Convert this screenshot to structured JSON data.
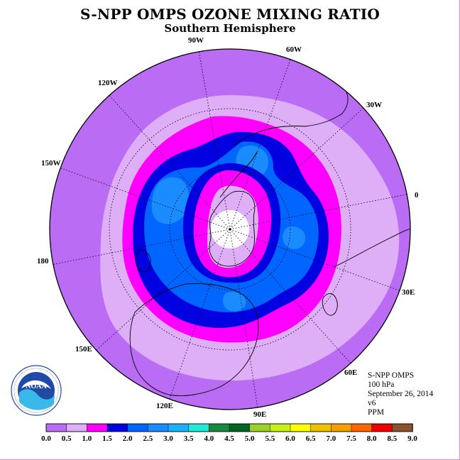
{
  "title": "S-NPP OMPS OZONE MIXING RATIO",
  "subtitle": "Southern Hemisphere",
  "longitude_labels": [
    "90W",
    "60W",
    "30W",
    "0",
    "30E",
    "60E",
    "90E",
    "120E",
    "150E",
    "180",
    "150W",
    "120W"
  ],
  "info": {
    "instrument": "S-NPP OMPS",
    "level": "100 hPa",
    "date": "September 26, 2014",
    "version": "v6",
    "units": "PPM"
  },
  "logo": {
    "text": "NOAA",
    "ring_text": "NATIONAL OCEANIC AND ATMOSPHERIC ADMINISTRATION · U.S. DEPARTMENT OF COMMERCE"
  },
  "colorbar": {
    "ticks": [
      "0.0",
      "0.5",
      "1.0",
      "1.5",
      "2.0",
      "2.5",
      "3.0",
      "3.5",
      "4.0",
      "4.5",
      "5.0",
      "5.5",
      "6.0",
      "6.5",
      "7.0",
      "7.5",
      "8.0",
      "8.5",
      "9.0"
    ],
    "colors": [
      "#bb6cf5",
      "#deaef7",
      "#ff00ff",
      "#0000e0",
      "#0066ff",
      "#1a8cff",
      "#1ab2ff",
      "#22e8d8",
      "#1b8a3e",
      "#006622",
      "#9bd22a",
      "#c6f01c",
      "#ffff00",
      "#f0c000",
      "#f29f00",
      "#ff6600",
      "#ee0000",
      "#8b5230"
    ]
  },
  "map_fields": {
    "center": {
      "lat": -90,
      "lon": 0
    },
    "bands_ppm": [
      {
        "range": "0.0-0.5",
        "color": "#bb6cf5"
      },
      {
        "range": "0.5-1.0",
        "color": "#deaef7"
      },
      {
        "range": "1.0-1.5",
        "color": "#ff00ff"
      },
      {
        "range": "1.5-2.0",
        "color": "#0000e0"
      },
      {
        "range": "2.0-2.5",
        "color": "#0066ff"
      },
      {
        "range": "2.5-3.0",
        "color": "#1a8cff"
      }
    ]
  }
}
